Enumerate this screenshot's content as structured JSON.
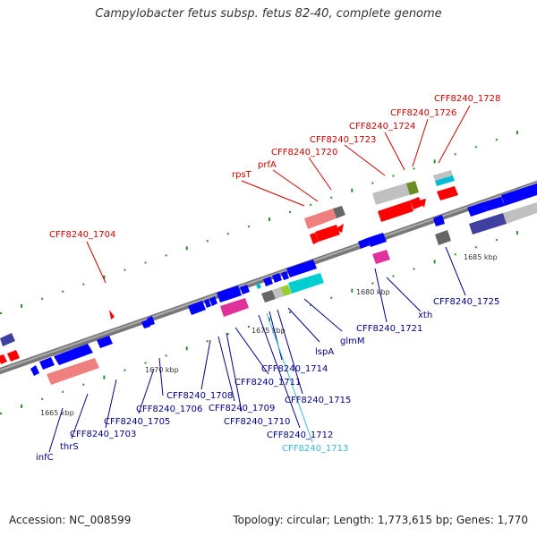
{
  "title": "Campylobacter fetus subsp. fetus 82-40, complete genome",
  "footer": {
    "accession": "Accession: NC_008599",
    "summary": "Topology: circular; Length: 1,773,615 bp; Genes: 1,770"
  },
  "colors": {
    "label_top": "#d40000",
    "label_bottom": "#00008b",
    "label_highlight": "#33bbdd",
    "backbone": "#888888",
    "tick_mark": "#2e8b2e"
  },
  "scale_labels": [
    "1665 kbp",
    "1670 kbp",
    "1675 kbp",
    "1680 kbp",
    "1685 kbp"
  ],
  "gene_labels_top": [
    "CFF8240_1704",
    "rpsT",
    "prfA",
    "CFF8240_1720",
    "CFF8240_1723",
    "CFF8240_1724",
    "CFF8240_1726",
    "CFF8240_1728"
  ],
  "gene_labels_bottom": [
    "infC",
    "thrS",
    "CFF8240_1703",
    "CFF8240_1705",
    "CFF8240_1706",
    "CFF8240_1708",
    "CFF8240_1709",
    "CFF8240_1710",
    "CFF8240_1711",
    "CFF8240_1712",
    "CFF8240_1713",
    "CFF8240_1714",
    "CFF8240_1715",
    "lspA",
    "glmM",
    "CFF8240_1721",
    "xth",
    "CFF8240_1725"
  ]
}
